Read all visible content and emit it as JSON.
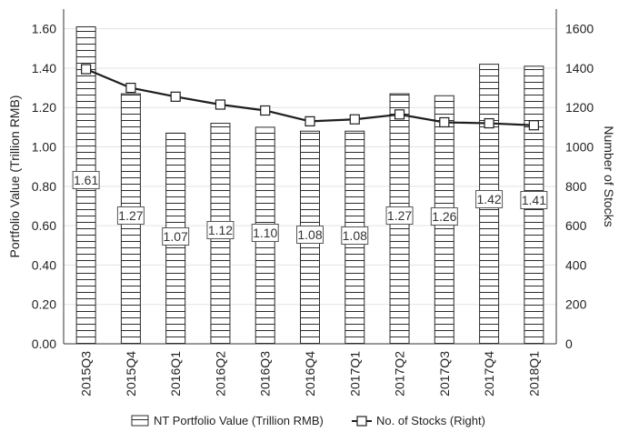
{
  "chart_data": {
    "type": "bar",
    "categories": [
      "2015Q3",
      "2015Q4",
      "2016Q1",
      "2016Q2",
      "2016Q3",
      "2016Q4",
      "2017Q1",
      "2017Q2",
      "2017Q3",
      "2017Q4",
      "2018Q1"
    ],
    "series": [
      {
        "name": "NT Portfolio Value (Trillion RMB)",
        "type": "bar",
        "axis": "left",
        "values": [
          1.61,
          1.27,
          1.07,
          1.12,
          1.1,
          1.08,
          1.08,
          1.27,
          1.26,
          1.42,
          1.41
        ],
        "labels": [
          "1.61",
          "1.27",
          "1.07",
          "1.12",
          "1.10",
          "1.08",
          "1.08",
          "1.27",
          "1.26",
          "1.42",
          "1.41"
        ]
      },
      {
        "name": "No. of Stocks (Right)",
        "type": "line",
        "axis": "right",
        "values": [
          1395,
          1300,
          1255,
          1215,
          1185,
          1130,
          1140,
          1165,
          1125,
          1120,
          1110
        ]
      }
    ],
    "y_left": {
      "label": "Portfolio Value (Trillion RMB)",
      "range": [
        0,
        1.7
      ],
      "ticks": [
        "0.00",
        "0.20",
        "0.40",
        "0.60",
        "0.80",
        "1.00",
        "1.20",
        "1.40",
        "1.60"
      ]
    },
    "y_right": {
      "label": "Number of Stocks",
      "range": [
        0,
        1700
      ],
      "ticks": [
        "0",
        "200",
        "400",
        "600",
        "800",
        "1000",
        "1200",
        "1400",
        "1600"
      ]
    },
    "title": "",
    "grid": true,
    "legend_position": "bottom"
  }
}
